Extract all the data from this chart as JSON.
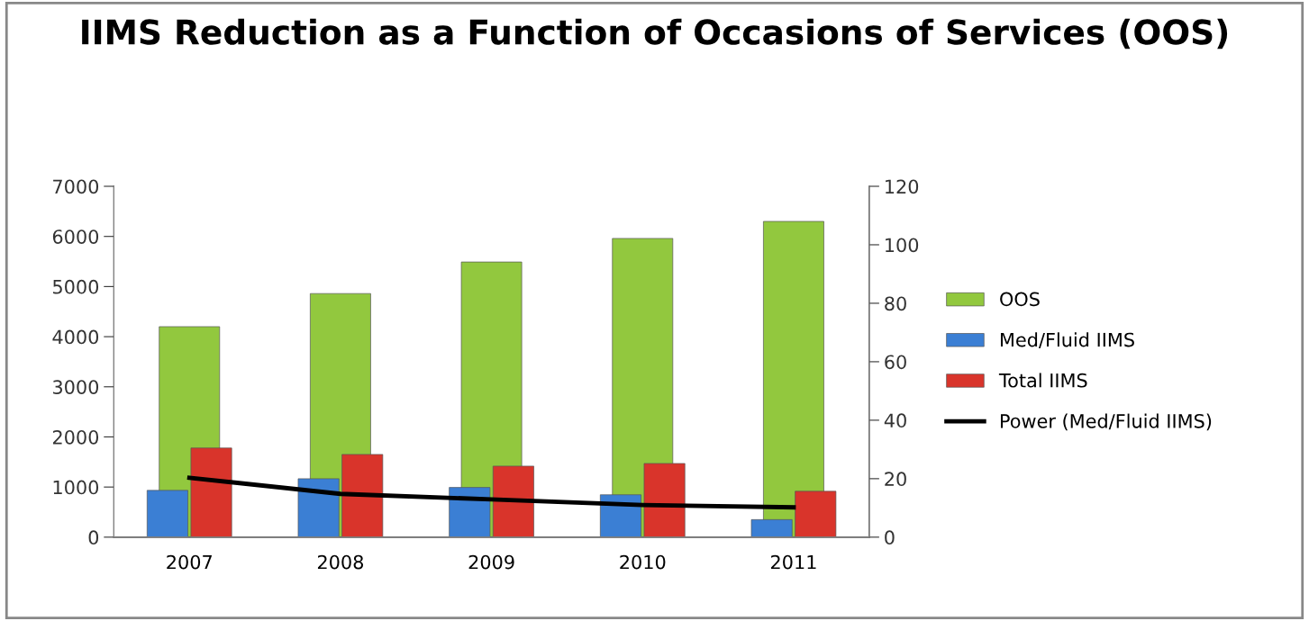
{
  "chart_data": {
    "type": "bar",
    "title": "IIMS Reduction as a Function of Occasions of Services (OOS)",
    "categories": [
      "2007",
      "2008",
      "2009",
      "2010",
      "2011"
    ],
    "series": [
      {
        "name": "OOS",
        "color": "#92c83e",
        "values": [
          4200,
          4860,
          5490,
          5960,
          6300
        ]
      },
      {
        "name": "Med/Fluid IIMS",
        "color": "#3b7fd4",
        "values": [
          16,
          20,
          17,
          14.5,
          6
        ],
        "axis": "y2"
      },
      {
        "name": "Total IIMS",
        "color": "#d9342b",
        "values": [
          30.5,
          28.3,
          24.3,
          25.2,
          15.7
        ],
        "axis": "y2"
      },
      {
        "name": "Power (Med/Fluid IIMS)",
        "type": "line",
        "color": "#000000",
        "values": [
          20.3,
          14.8,
          12.9,
          11,
          10.2
        ],
        "axis": "y2"
      }
    ],
    "ylim": [
      0,
      7000
    ],
    "yticks": [
      0,
      1000,
      2000,
      3000,
      4000,
      5000,
      6000,
      7000
    ],
    "y2lim": [
      0,
      120
    ],
    "y2ticks": [
      0,
      20,
      40,
      60,
      80,
      100,
      120
    ],
    "grid": false,
    "legend": "right"
  }
}
